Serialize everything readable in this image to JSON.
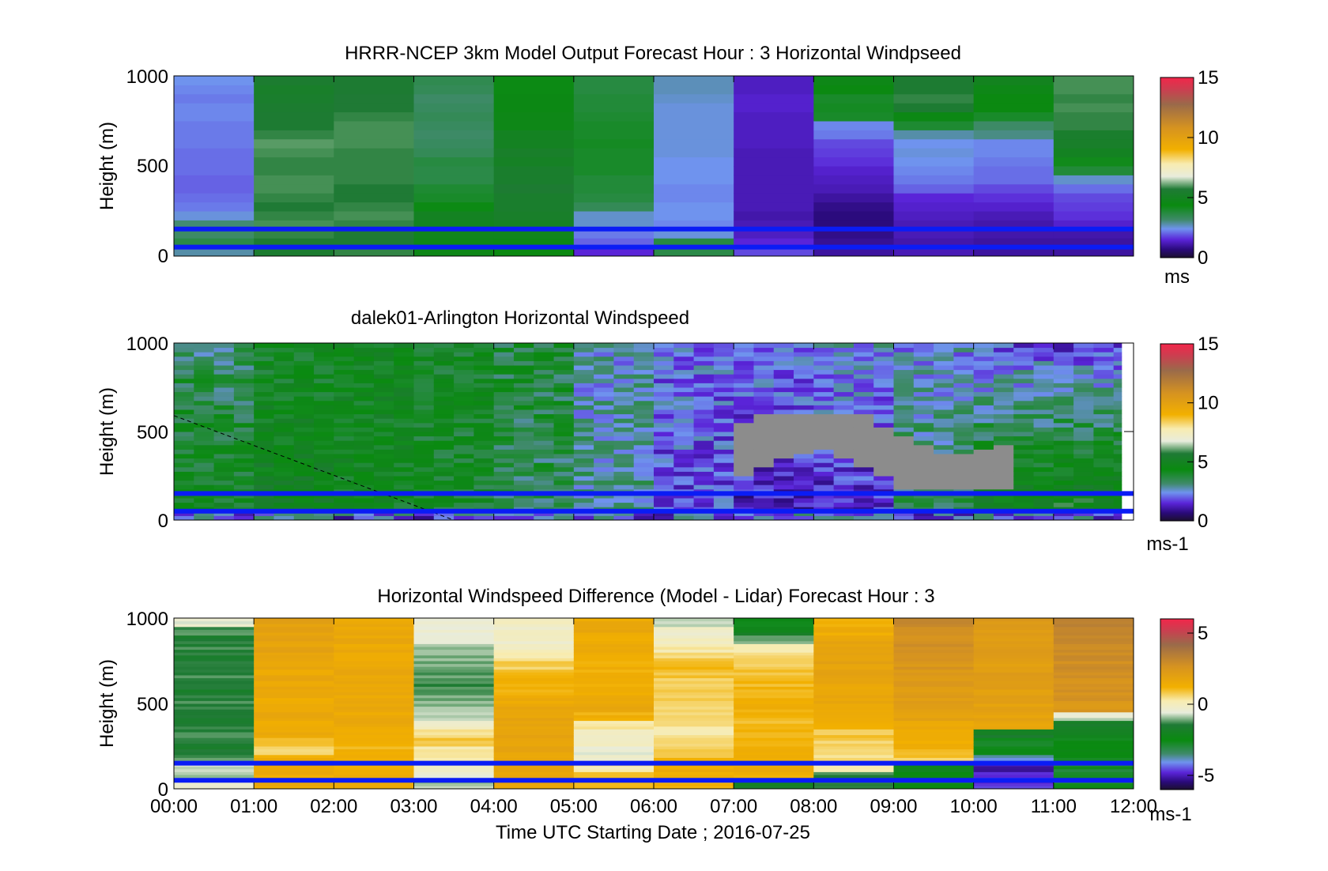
{
  "figure": {
    "xlabel": "Time UTC  Starting Date ; 2016-07-25",
    "x_tick_labels": [
      "00:00",
      "01:00",
      "02:00",
      "03:00",
      "04:00",
      "05:00",
      "06:00",
      "07:00",
      "08:00",
      "09:00",
      "10:00",
      "11:00",
      "12:00"
    ]
  },
  "chart_data": [
    {
      "type": "heatmap",
      "title": "HRRR-NCEP 3km Model Output   Forecast Hour : 3 Horizontal Windpseed",
      "ylabel": "Height (m)",
      "xlim": [
        0,
        12
      ],
      "ylim": [
        0,
        1000
      ],
      "y_tick_labels": [
        "0",
        "500",
        "1000"
      ],
      "x_tick_labels": [],
      "colorbar": {
        "ticks": [
          "0",
          "5",
          "10",
          "15"
        ],
        "range": [
          0,
          15
        ],
        "unit": "ms"
      },
      "hours": [
        0,
        1,
        2,
        3,
        4,
        5,
        6,
        7,
        8,
        9,
        10,
        11
      ],
      "height_levels": [
        25,
        75,
        125,
        175,
        225,
        275,
        325,
        375,
        425,
        475,
        525,
        575,
        625,
        675,
        725,
        775,
        825,
        875,
        925,
        975
      ],
      "windspeed": [
        [
          2.8,
          3.6,
          3.2,
          3.1,
          2.5,
          2.2,
          2.1,
          2.0,
          2.0,
          2.1,
          2.1,
          2.1,
          2.2,
          2.2,
          2.2,
          2.3,
          2.3,
          2.2,
          2.3,
          2.4
        ],
        [
          5.5,
          5.6,
          5.8,
          5.9,
          5.8,
          5.7,
          5.8,
          5.9,
          5.9,
          5.8,
          5.8,
          5.9,
          6.0,
          5.8,
          5.6,
          5.6,
          5.5,
          5.4,
          5.3,
          5.5
        ],
        [
          5.8,
          5.6,
          5.7,
          5.8,
          5.9,
          5.8,
          5.7,
          5.7,
          5.8,
          5.8,
          5.8,
          5.8,
          5.9,
          5.9,
          5.9,
          5.8,
          5.7,
          5.7,
          5.6,
          5.6
        ],
        [
          4.6,
          4.6,
          4.8,
          4.9,
          5.0,
          4.3,
          4.0,
          3.9,
          3.6,
          3.6,
          3.7,
          3.4,
          3.3,
          3.2,
          3.3,
          3.4,
          3.3,
          3.2,
          3.4,
          3.5
        ],
        [
          4.4,
          4.5,
          4.8,
          5.1,
          5.3,
          5.4,
          5.4,
          5.6,
          5.4,
          5.4,
          5.1,
          5.3,
          5.0,
          5.0,
          4.6,
          4.6,
          4.5,
          4.5,
          4.3,
          4.3
        ],
        [
          1.5,
          2.0,
          2.2,
          2.6,
          2.6,
          3.4,
          3.7,
          3.8,
          3.8,
          4.0,
          4.0,
          4.0,
          4.1,
          4.0,
          4.0,
          3.9,
          3.8,
          3.8,
          3.7,
          3.7
        ],
        [
          3.6,
          3.7,
          2.5,
          2.3,
          2.4,
          2.4,
          2.3,
          2.3,
          2.4,
          2.4,
          2.4,
          2.5,
          2.5,
          2.5,
          2.5,
          2.5,
          2.5,
          2.6,
          2.7,
          2.7
        ],
        [
          1.8,
          1.5,
          1.3,
          1.2,
          1.1,
          1.2,
          1.2,
          1.2,
          1.2,
          1.2,
          1.2,
          1.2,
          1.3,
          1.3,
          1.3,
          1.3,
          1.4,
          1.4,
          1.3,
          1.3
        ],
        [
          1.0,
          0.9,
          0.8,
          0.7,
          0.7,
          0.8,
          1.0,
          1.2,
          1.3,
          1.4,
          1.6,
          1.7,
          1.8,
          2.2,
          2.3,
          4.0,
          4.1,
          4.0,
          4.4,
          4.6
        ],
        [
          1.2,
          1.1,
          1.2,
          1.2,
          1.3,
          1.4,
          1.5,
          2.0,
          2.2,
          2.3,
          2.4,
          2.5,
          2.4,
          2.8,
          3.9,
          4.5,
          5.6,
          5.8,
          5.6,
          5.6
        ],
        [
          1.0,
          1.0,
          1.1,
          1.1,
          1.2,
          1.4,
          1.6,
          1.8,
          2.1,
          2.1,
          2.2,
          2.3,
          2.3,
          3.0,
          3.2,
          4.0,
          4.4,
          4.4,
          4.6,
          4.9
        ],
        [
          1.0,
          1.0,
          1.1,
          1.4,
          1.6,
          1.7,
          1.8,
          2.1,
          2.6,
          3.8,
          4.2,
          5.0,
          5.3,
          5.4,
          5.8,
          5.8,
          5.9,
          5.8,
          5.9,
          5.9
        ]
      ],
      "horizontal_lines_m": [
        50,
        150
      ]
    },
    {
      "type": "heatmap",
      "title": "dalek01-Arlington  Horizontal Windspeed",
      "ylabel": "Height (m)",
      "xlim": [
        0,
        12
      ],
      "ylim": [
        0,
        1000
      ],
      "data_end_hour": 11.85,
      "y_tick_labels": [
        "0",
        "500",
        "1000"
      ],
      "x_tick_labels": [],
      "colorbar": {
        "ticks": [
          "0",
          "5",
          "10",
          "15"
        ],
        "range": [
          0,
          15
        ],
        "unit": "ms-1"
      },
      "column_profiles": [
        {
          "hour": 0.5,
          "low_ms": 4.5,
          "high_ms": 3.2
        },
        {
          "hour": 1.5,
          "low_ms": 5.0,
          "high_ms": 4.2
        },
        {
          "hour": 2.5,
          "low_ms": 4.4,
          "high_ms": 4.6
        },
        {
          "hour": 3.5,
          "low_ms": 4.0,
          "high_ms": 4.3
        },
        {
          "hour": 4.5,
          "low_ms": 3.4,
          "high_ms": 3.8
        },
        {
          "hour": 5.5,
          "low_ms": 3.0,
          "high_ms": 2.6
        },
        {
          "hour": 6.5,
          "low_ms": 1.8,
          "high_ms": 2.2
        },
        {
          "hour": 7.5,
          "low_ms": 1.2,
          "high_ms": 2.2
        },
        {
          "hour": 8.5,
          "low_ms": 1.4,
          "high_ms": 2.5
        },
        {
          "hour": 9.5,
          "low_ms": 3.6,
          "high_ms": 2.4
        },
        {
          "hour": 10.5,
          "low_ms": 5.2,
          "high_ms": 1.8
        },
        {
          "hour": 11.5,
          "low_ms": 5.6,
          "high_ms": 1.6
        }
      ],
      "missing_region": {
        "hours": [
          7.1,
          10.6
        ],
        "heights_m": [
          170,
          610
        ]
      },
      "dashed_line": {
        "from": {
          "hour": 0.0,
          "height_m": 590
        },
        "to": {
          "hour": 3.5,
          "height_m": 0
        }
      },
      "horizontal_lines_m": [
        50,
        150
      ]
    },
    {
      "type": "heatmap",
      "title": "Horizontal Windspeed Difference (Model - Lidar) Forecast Hour : 3",
      "ylabel": "Height (m)",
      "xlim": [
        0,
        12
      ],
      "ylim": [
        0,
        1000
      ],
      "y_tick_labels": [
        "0",
        "500",
        "1000"
      ],
      "colorbar": {
        "ticks": [
          "-5",
          "0",
          "5"
        ],
        "range": [
          -6,
          6
        ],
        "unit": "ms-1"
      },
      "hours": [
        0,
        1,
        2,
        3,
        4,
        5,
        6,
        7,
        8,
        9,
        10,
        11
      ],
      "height_levels": [
        25,
        75,
        125,
        175,
        225,
        275,
        325,
        375,
        425,
        475,
        525,
        575,
        625,
        675,
        725,
        775,
        825,
        875,
        925,
        975
      ],
      "difference": [
        [
          -0.4,
          -1.0,
          -0.6,
          -1.2,
          -1.5,
          -1.4,
          -1.3,
          -1.5,
          -1.4,
          -1.5,
          -1.4,
          -1.6,
          -1.5,
          -1.4,
          -1.5,
          -1.5,
          -1.4,
          -1.5,
          -1.2,
          -0.5
        ],
        [
          1.5,
          1.4,
          1.6,
          1.3,
          0.6,
          0.8,
          1.4,
          1.5,
          1.6,
          1.6,
          1.5,
          1.6,
          1.7,
          1.6,
          1.8,
          1.8,
          1.9,
          1.8,
          1.8,
          1.9
        ],
        [
          1.6,
          1.5,
          1.4,
          1.3,
          1.2,
          1.2,
          1.4,
          1.5,
          1.5,
          1.6,
          1.6,
          1.6,
          1.7,
          1.7,
          1.7,
          1.6,
          1.6,
          1.6,
          1.6,
          1.5
        ],
        [
          -0.8,
          -0.5,
          -0.3,
          0.2,
          0.4,
          0.8,
          0.3,
          -0.2,
          -0.8,
          -1.0,
          -1.1,
          -1.1,
          -1.3,
          -1.3,
          -1.1,
          -1.0,
          -0.8,
          -0.6,
          -0.4,
          -0.3
        ],
        [
          1.8,
          1.8,
          1.7,
          1.8,
          1.8,
          1.8,
          1.8,
          1.8,
          1.7,
          1.7,
          1.6,
          1.3,
          1.2,
          1.0,
          0.7,
          0.3,
          -0.1,
          -0.2,
          -0.2,
          -0.1
        ],
        [
          1.2,
          1.0,
          0.2,
          -0.3,
          -0.5,
          -0.2,
          -0.1,
          0.2,
          1.3,
          1.6,
          1.5,
          1.4,
          1.3,
          1.2,
          1.3,
          1.4,
          1.5,
          1.4,
          1.6,
          1.5
        ],
        [
          1.2,
          1.3,
          1.4,
          1.0,
          0.6,
          0.4,
          0.3,
          0.3,
          0.4,
          0.5,
          0.6,
          0.7,
          0.8,
          0.9,
          1.0,
          0.7,
          0.2,
          0.0,
          -0.3,
          -0.6
        ],
        [
          -1.8,
          1.2,
          1.5,
          1.4,
          1.3,
          1.2,
          1.0,
          1.0,
          1.2,
          1.2,
          1.2,
          1.1,
          1.0,
          1.0,
          0.8,
          0.6,
          0.1,
          -1.0,
          -2.0,
          -2.5
        ],
        [
          -1.5,
          -1.2,
          0.2,
          0.4,
          0.6,
          0.6,
          0.8,
          1.3,
          1.5,
          1.5,
          1.6,
          1.7,
          1.8,
          1.9,
          1.9,
          1.9,
          1.9,
          1.8,
          1.4,
          1.1
        ],
        [
          -2.6,
          -2.5,
          -2.2,
          0.8,
          1.2,
          1.4,
          1.5,
          1.6,
          1.9,
          2.0,
          2.1,
          2.2,
          2.3,
          2.4,
          2.5,
          2.6,
          2.7,
          2.8,
          2.9,
          3.0
        ],
        [
          -4.8,
          -4.6,
          -5.2,
          -3.8,
          -2.4,
          -2.6,
          -1.8,
          1.6,
          1.8,
          1.9,
          2.0,
          2.0,
          2.0,
          2.1,
          2.1,
          2.2,
          2.1,
          2.2,
          2.2,
          2.3
        ],
        [
          -2.8,
          -2.6,
          -2.8,
          -2.6,
          -2.4,
          -2.5,
          -2.0,
          -1.8,
          -0.6,
          2.5,
          2.6,
          2.7,
          2.7,
          2.8,
          2.8,
          2.9,
          3.0,
          3.0,
          3.1,
          3.2
        ]
      ],
      "horizontal_lines_m": [
        50,
        150
      ]
    }
  ]
}
